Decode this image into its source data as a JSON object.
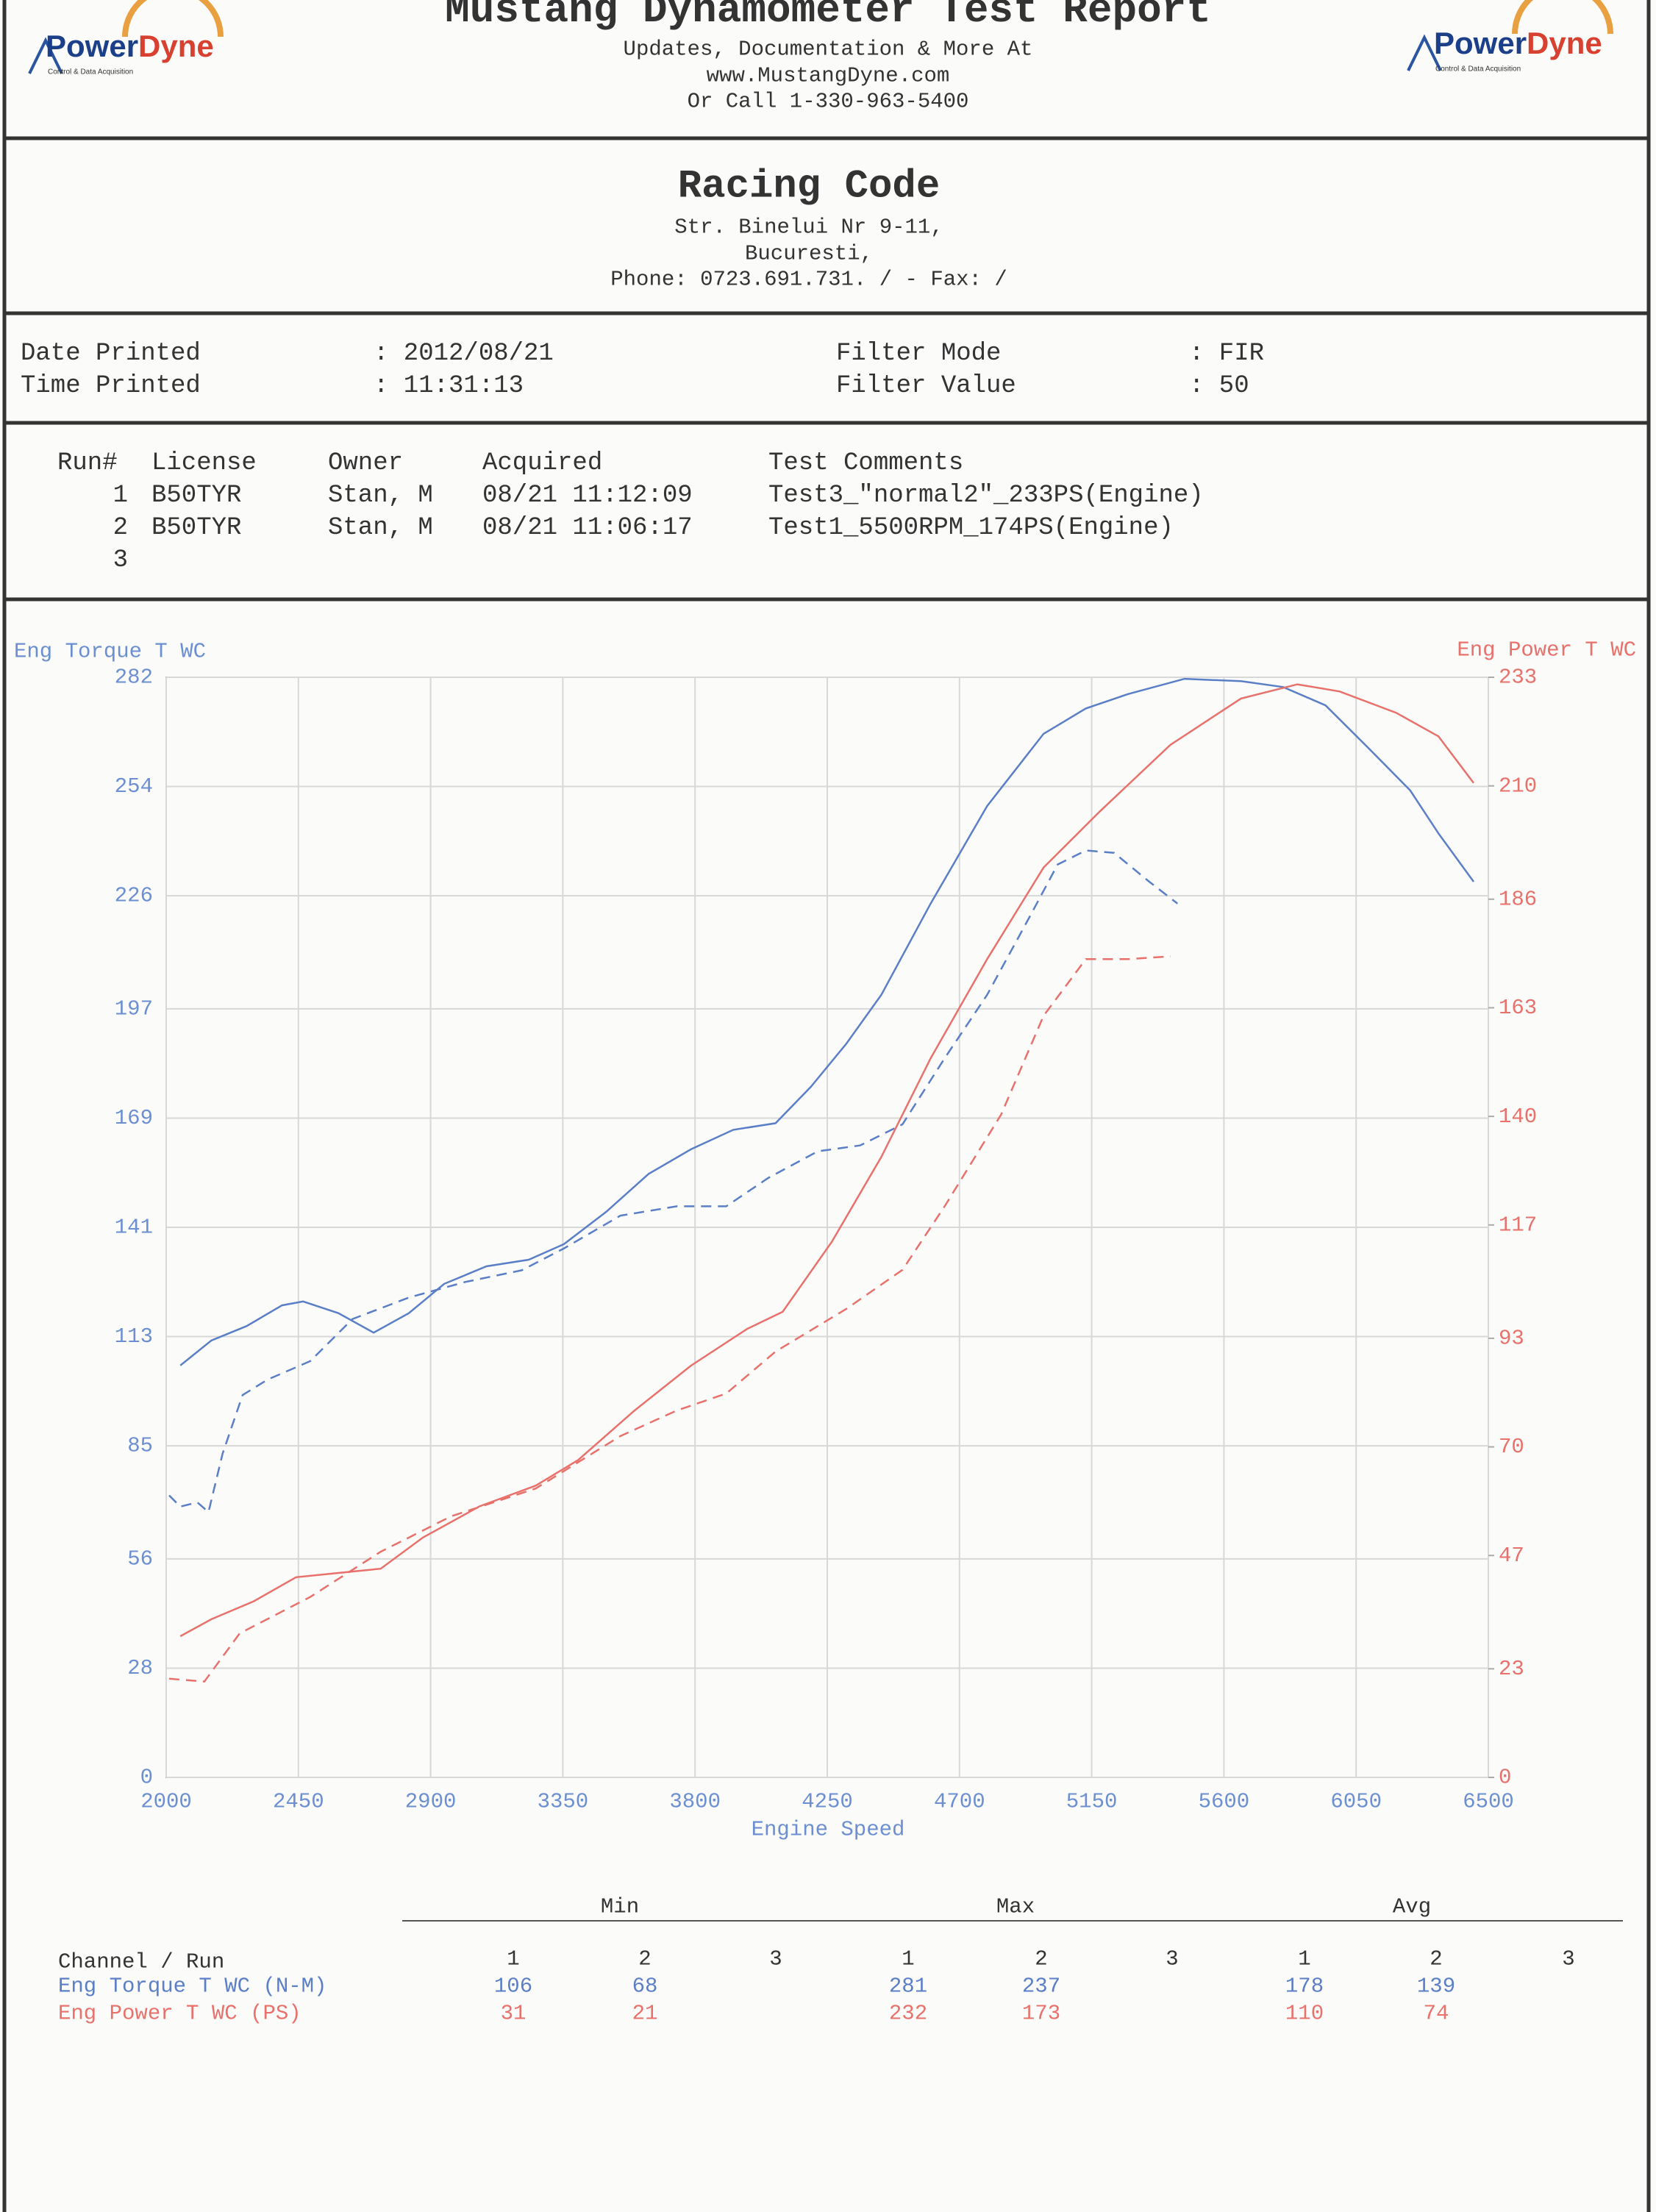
{
  "header": {
    "title": "Mustang Dynamometer Test Report",
    "lines": [
      "Updates, Documentation & More At",
      "www.MustangDyne.com",
      "Or Call 1-330-963-5400"
    ]
  },
  "logo": {
    "brand_a": "Power",
    "brand_b": "Dyne",
    "tagline": "Control & Data Acquisition"
  },
  "shop": {
    "name": "Racing Code",
    "lines": [
      "Str. Binelui Nr 9-11,",
      "Bucuresti,",
      "Phone: 0723.691.731. /  - Fax:  /"
    ]
  },
  "info": {
    "rows": [
      [
        "Date Printed",
        ": 2012/08/21",
        "Filter Mode",
        ": FIR"
      ],
      [
        "Time Printed",
        ": 11:31:13",
        "Filter Value",
        ": 50"
      ]
    ]
  },
  "runs": {
    "columns": [
      "Run#",
      "License",
      "Owner",
      "Acquired",
      "Test Comments"
    ],
    "rows": [
      [
        "1",
        "B50TYR",
        "Stan, M",
        "08/21 11:12:09",
        "Test3_\"normal2\"_233PS(Engine)"
      ],
      [
        "2",
        "B50TYR",
        "Stan, M",
        "08/21 11:06:17",
        "Test1_5500RPM_174PS(Engine)"
      ],
      [
        "3"
      ]
    ]
  },
  "chart_data": {
    "type": "line",
    "y_label": "Eng Torque T WC",
    "y2_label": "Eng Power T WC",
    "x_label": "Engine Speed",
    "xlim": [
      2000,
      6500
    ],
    "xticks": [
      2000,
      2450,
      2900,
      3350,
      3800,
      4250,
      4700,
      5150,
      5600,
      6050,
      6500
    ],
    "ylim": [
      0,
      282
    ],
    "yticks": [
      0,
      28,
      56,
      85,
      113,
      141,
      169,
      197,
      226,
      254,
      282
    ],
    "y2lim": [
      0,
      233
    ],
    "y2ticks": [
      0,
      23,
      47,
      70,
      93,
      117,
      140,
      163,
      186,
      210,
      233
    ],
    "grid": true,
    "series": [
      {
        "color": "#5b7fc7",
        "style": "solid",
        "axis": "y",
        "x": [
          2048,
          2154,
          2274,
          2394,
          2466,
          2586,
          2706,
          2826,
          2946,
          3090,
          3234,
          3354,
          3498,
          3642,
          3786,
          3930,
          4074,
          4194,
          4314,
          4434,
          4602,
          4794,
          4986,
          5130,
          5274,
          5466,
          5658,
          5802,
          5946,
          6090,
          6234,
          6330,
          6450
        ],
        "values": [
          105.6,
          112,
          115.7,
          121,
          122,
          119,
          114,
          119,
          126.5,
          131,
          132.7,
          136.7,
          145,
          154.7,
          161,
          166,
          167.7,
          177,
          188,
          200.6,
          224,
          249,
          267.5,
          274,
          277.7,
          281.6,
          281,
          279.5,
          274.8,
          264,
          253,
          242,
          229.6
        ]
      },
      {
        "color": "#5b7fc7",
        "style": "dashed",
        "axis": "y",
        "x": [
          2010,
          2048,
          2106,
          2144,
          2192,
          2260,
          2346,
          2490,
          2634,
          2826,
          3018,
          3210,
          3354,
          3546,
          3738,
          3906,
          4050,
          4218,
          4362,
          4506,
          4650,
          4794,
          4938,
          5034,
          5130,
          5226,
          5346,
          5442
        ],
        "values": [
          72.3,
          69.4,
          70.5,
          68,
          83,
          98,
          102,
          106.7,
          117.5,
          123,
          127,
          130,
          135.6,
          144,
          146.4,
          146.4,
          153.7,
          160.5,
          162,
          167.4,
          184.4,
          200.6,
          220.5,
          234,
          237.6,
          237,
          229.6,
          224
        ]
      },
      {
        "color": "#e8716b",
        "style": "solid",
        "axis": "y2",
        "x": [
          2048,
          2154,
          2298,
          2442,
          2586,
          2730,
          2874,
          3066,
          3258,
          3402,
          3594,
          3786,
          3978,
          4098,
          4266,
          4434,
          4602,
          4794,
          4986,
          5178,
          5418,
          5658,
          5850,
          5994,
          6186,
          6330,
          6450
        ],
        "values": [
          29.9,
          33.5,
          37.3,
          42.4,
          43.3,
          44.2,
          50.8,
          57.4,
          61.8,
          67.2,
          77.7,
          87.2,
          95,
          98.6,
          113.5,
          131.4,
          152.3,
          173.3,
          192.7,
          204.6,
          218.7,
          228.5,
          231.5,
          230,
          225.5,
          220.5,
          210.6
        ]
      },
      {
        "color": "#e8716b",
        "style": "dashed",
        "axis": "y2",
        "x": [
          2010,
          2130,
          2250,
          2490,
          2730,
          2970,
          3258,
          3546,
          3738,
          3906,
          4074,
          4314,
          4506,
          4650,
          4842,
          4986,
          5130,
          5274,
          5418
        ],
        "values": [
          20.9,
          20.3,
          30.5,
          38.2,
          47.8,
          55.3,
          61.2,
          72.3,
          77.7,
          81.3,
          90.2,
          99.2,
          107.5,
          121,
          140.4,
          161.3,
          173.3,
          173.3,
          173.9
        ]
      }
    ]
  },
  "stats": {
    "groups": [
      "Min",
      "Max",
      "Avg"
    ],
    "header": "Channel / Run",
    "run_labels": [
      "1",
      "2",
      "3"
    ],
    "rows": [
      {
        "name": "Eng Torque T WC (N-M)",
        "color": "#5b7fc7",
        "min": [
          106,
          68
        ],
        "max": [
          281,
          237
        ],
        "avg": [
          178,
          139
        ]
      },
      {
        "name": "Eng Power T WC (PS)",
        "color": "#e8716b",
        "min": [
          31,
          21
        ],
        "max": [
          232,
          173
        ],
        "avg": [
          110,
          74
        ]
      }
    ]
  }
}
